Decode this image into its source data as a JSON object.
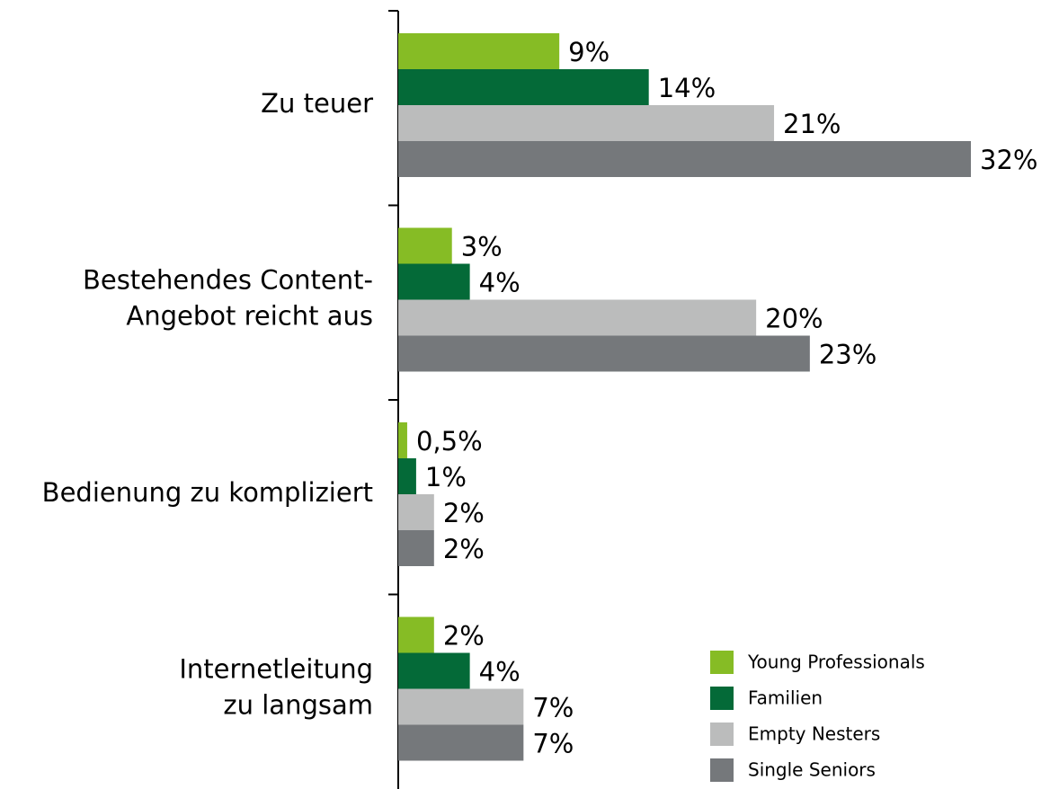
{
  "chart_data": {
    "type": "barh",
    "categories": [
      [
        "Zu teuer"
      ],
      [
        "Bestehendes Content-",
        "Angebot reicht aus"
      ],
      [
        "Bedienung zu kompliziert"
      ],
      [
        "Internetleitung",
        "zu langsam"
      ]
    ],
    "series": [
      {
        "name": "Young Professionals",
        "color": "#86bc25",
        "values": [
          9,
          3,
          0.5,
          2
        ],
        "value_labels": [
          "9%",
          "3%",
          "0,5%",
          "2%"
        ]
      },
      {
        "name": "Familien",
        "color": "#046a38",
        "values": [
          14,
          4,
          1,
          4
        ],
        "value_labels": [
          "14%",
          "4%",
          "1%",
          "4%"
        ]
      },
      {
        "name": "Empty Nesters",
        "color": "#bbbcbc",
        "values": [
          21,
          20,
          2,
          7
        ],
        "value_labels": [
          "21%",
          "20%",
          "2%",
          "7%"
        ]
      },
      {
        "name": "Single Seniors",
        "color": "#75787b",
        "values": [
          32,
          23,
          2,
          7
        ],
        "value_labels": [
          "32%",
          "23%",
          "2%",
          "7%"
        ]
      }
    ],
    "xlim": [
      0,
      32
    ],
    "legend": "lower right"
  }
}
